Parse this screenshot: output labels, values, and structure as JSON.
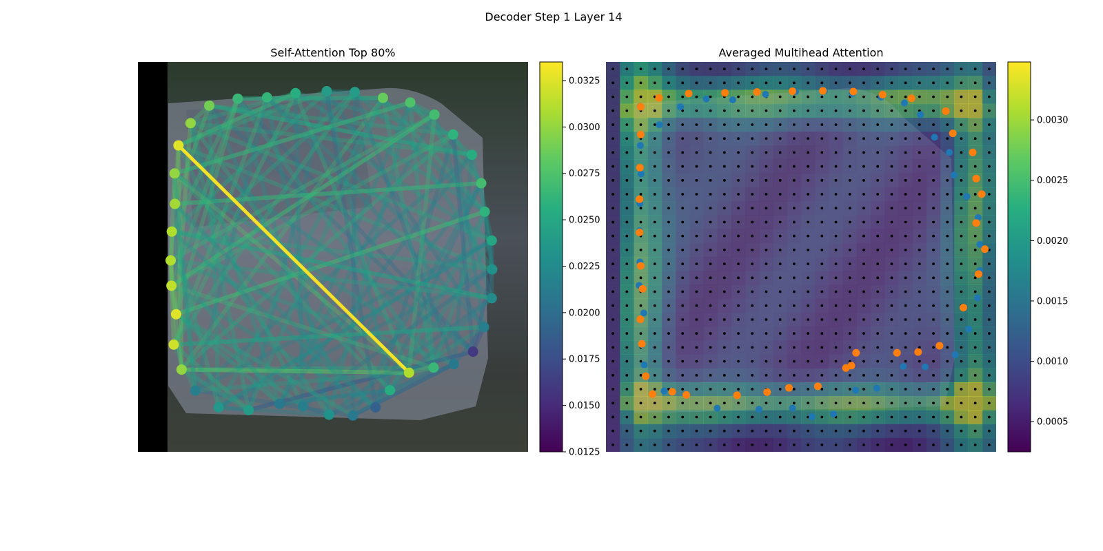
{
  "figure": {
    "suptitle": "Decoder Step 1 Layer 14"
  },
  "chart_data": [
    {
      "type": "scatter",
      "title": "Self-Attention Top 80%",
      "colorbar": {
        "cmap": "viridis",
        "range": [
          0.0125,
          0.0335
        ],
        "ticks": [
          "0.0125",
          "0.0150",
          "0.0175",
          "0.0200",
          "0.0225",
          "0.0250",
          "0.0275",
          "0.0300",
          "0.0325"
        ]
      },
      "points": [
        {
          "x": 0.104,
          "y": 0.214,
          "v": 0.0325
        },
        {
          "x": 0.135,
          "y": 0.157,
          "v": 0.03
        },
        {
          "x": 0.183,
          "y": 0.112,
          "v": 0.029
        },
        {
          "x": 0.256,
          "y": 0.094,
          "v": 0.0265
        },
        {
          "x": 0.331,
          "y": 0.091,
          "v": 0.0262
        },
        {
          "x": 0.404,
          "y": 0.08,
          "v": 0.0255
        },
        {
          "x": 0.484,
          "y": 0.075,
          "v": 0.024
        },
        {
          "x": 0.556,
          "y": 0.077,
          "v": 0.024
        },
        {
          "x": 0.628,
          "y": 0.092,
          "v": 0.0285
        },
        {
          "x": 0.698,
          "y": 0.104,
          "v": 0.0275
        },
        {
          "x": 0.76,
          "y": 0.135,
          "v": 0.027
        },
        {
          "x": 0.808,
          "y": 0.186,
          "v": 0.026
        },
        {
          "x": 0.856,
          "y": 0.238,
          "v": 0.0255
        },
        {
          "x": 0.88,
          "y": 0.311,
          "v": 0.027
        },
        {
          "x": 0.889,
          "y": 0.384,
          "v": 0.026
        },
        {
          "x": 0.907,
          "y": 0.458,
          "v": 0.025
        },
        {
          "x": 0.908,
          "y": 0.532,
          "v": 0.023
        },
        {
          "x": 0.907,
          "y": 0.606,
          "v": 0.0225
        },
        {
          "x": 0.887,
          "y": 0.68,
          "v": 0.0215
        },
        {
          "x": 0.859,
          "y": 0.743,
          "v": 0.016
        },
        {
          "x": 0.81,
          "y": 0.775,
          "v": 0.021
        },
        {
          "x": 0.758,
          "y": 0.784,
          "v": 0.0265
        },
        {
          "x": 0.695,
          "y": 0.797,
          "v": 0.031
        },
        {
          "x": 0.646,
          "y": 0.842,
          "v": 0.0255
        },
        {
          "x": 0.609,
          "y": 0.886,
          "v": 0.019
        },
        {
          "x": 0.551,
          "y": 0.907,
          "v": 0.021
        },
        {
          "x": 0.49,
          "y": 0.905,
          "v": 0.023
        },
        {
          "x": 0.423,
          "y": 0.883,
          "v": 0.0215
        },
        {
          "x": 0.363,
          "y": 0.877,
          "v": 0.021
        },
        {
          "x": 0.284,
          "y": 0.893,
          "v": 0.024
        },
        {
          "x": 0.207,
          "y": 0.886,
          "v": 0.0235
        },
        {
          "x": 0.147,
          "y": 0.843,
          "v": 0.0215
        },
        {
          "x": 0.112,
          "y": 0.789,
          "v": 0.03
        },
        {
          "x": 0.092,
          "y": 0.725,
          "v": 0.032
        },
        {
          "x": 0.098,
          "y": 0.647,
          "v": 0.0325
        },
        {
          "x": 0.086,
          "y": 0.574,
          "v": 0.0315
        },
        {
          "x": 0.084,
          "y": 0.509,
          "v": 0.031
        },
        {
          "x": 0.087,
          "y": 0.435,
          "v": 0.031
        },
        {
          "x": 0.095,
          "y": 0.364,
          "v": 0.0305
        },
        {
          "x": 0.094,
          "y": 0.286,
          "v": 0.03
        }
      ]
    },
    {
      "type": "heatmap",
      "title": "Averaged Multihead Attention",
      "colorbar": {
        "cmap": "viridis",
        "range": [
          0.00025,
          0.00348
        ],
        "ticks": [
          "0.0005",
          "0.0010",
          "0.0015",
          "0.0020",
          "0.0025",
          "0.0030"
        ]
      },
      "blue_points": [
        [
          0.088,
          0.114
        ],
        [
          0.137,
          0.161
        ],
        [
          0.191,
          0.115
        ],
        [
          0.257,
          0.095
        ],
        [
          0.325,
          0.097
        ],
        [
          0.409,
          0.083
        ],
        [
          0.486,
          0.076
        ],
        [
          0.56,
          0.074
        ],
        [
          0.631,
          0.081
        ],
        [
          0.705,
          0.09
        ],
        [
          0.765,
          0.105
        ],
        [
          0.806,
          0.135
        ],
        [
          0.842,
          0.193
        ],
        [
          0.88,
          0.232
        ],
        [
          0.892,
          0.29
        ],
        [
          0.925,
          0.345
        ],
        [
          0.954,
          0.399
        ],
        [
          0.958,
          0.468
        ],
        [
          0.958,
          0.535
        ],
        [
          0.952,
          0.605
        ],
        [
          0.93,
          0.685
        ],
        [
          0.895,
          0.751
        ],
        [
          0.818,
          0.782
        ],
        [
          0.762,
          0.781
        ],
        [
          0.694,
          0.837
        ],
        [
          0.64,
          0.842
        ],
        [
          0.583,
          0.903
        ],
        [
          0.528,
          0.91
        ],
        [
          0.478,
          0.888
        ],
        [
          0.392,
          0.891
        ],
        [
          0.285,
          0.888
        ],
        [
          0.149,
          0.844
        ],
        [
          0.098,
          0.777
        ],
        [
          0.092,
          0.725
        ],
        [
          0.097,
          0.644
        ],
        [
          0.085,
          0.573
        ],
        [
          0.087,
          0.513
        ],
        [
          0.086,
          0.433
        ],
        [
          0.087,
          0.363
        ],
        [
          0.09,
          0.287
        ],
        [
          0.088,
          0.214
        ]
      ],
      "orange_points": [
        [
          0.089,
          0.115
        ],
        [
          0.136,
          0.092
        ],
        [
          0.212,
          0.081
        ],
        [
          0.305,
          0.079
        ],
        [
          0.387,
          0.077
        ],
        [
          0.478,
          0.075
        ],
        [
          0.556,
          0.074
        ],
        [
          0.634,
          0.076
        ],
        [
          0.709,
          0.084
        ],
        [
          0.783,
          0.093
        ],
        [
          0.871,
          0.126
        ],
        [
          0.889,
          0.183
        ],
        [
          0.94,
          0.232
        ],
        [
          0.949,
          0.299
        ],
        [
          0.963,
          0.339
        ],
        [
          0.949,
          0.413
        ],
        [
          0.971,
          0.48
        ],
        [
          0.955,
          0.544
        ],
        [
          0.916,
          0.63
        ],
        [
          0.855,
          0.728
        ],
        [
          0.8,
          0.744
        ],
        [
          0.746,
          0.746
        ],
        [
          0.641,
          0.746
        ],
        [
          0.629,
          0.779
        ],
        [
          0.615,
          0.785
        ],
        [
          0.543,
          0.832
        ],
        [
          0.469,
          0.836
        ],
        [
          0.413,
          0.847
        ],
        [
          0.336,
          0.855
        ],
        [
          0.206,
          0.854
        ],
        [
          0.17,
          0.846
        ],
        [
          0.119,
          0.852
        ],
        [
          0.102,
          0.806
        ],
        [
          0.092,
          0.723
        ],
        [
          0.088,
          0.66
        ],
        [
          0.094,
          0.582
        ],
        [
          0.089,
          0.523
        ],
        [
          0.086,
          0.437
        ],
        [
          0.086,
          0.352
        ],
        [
          0.087,
          0.271
        ],
        [
          0.089,
          0.186
        ]
      ]
    }
  ]
}
